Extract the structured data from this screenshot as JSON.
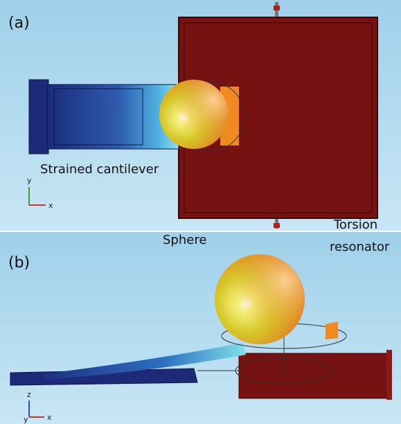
{
  "panel_a": {
    "label": "(a)",
    "annotation": "Strained cantilever",
    "axes": {
      "vertical": "y",
      "horizontal": "x"
    }
  },
  "panel_b": {
    "label": "(b)",
    "sphere": "Sphere",
    "resonator": [
      "Torsion",
      "resonator"
    ],
    "axes": {
      "vertical": "z",
      "horizontal": "x",
      "depth": "y"
    }
  }
}
